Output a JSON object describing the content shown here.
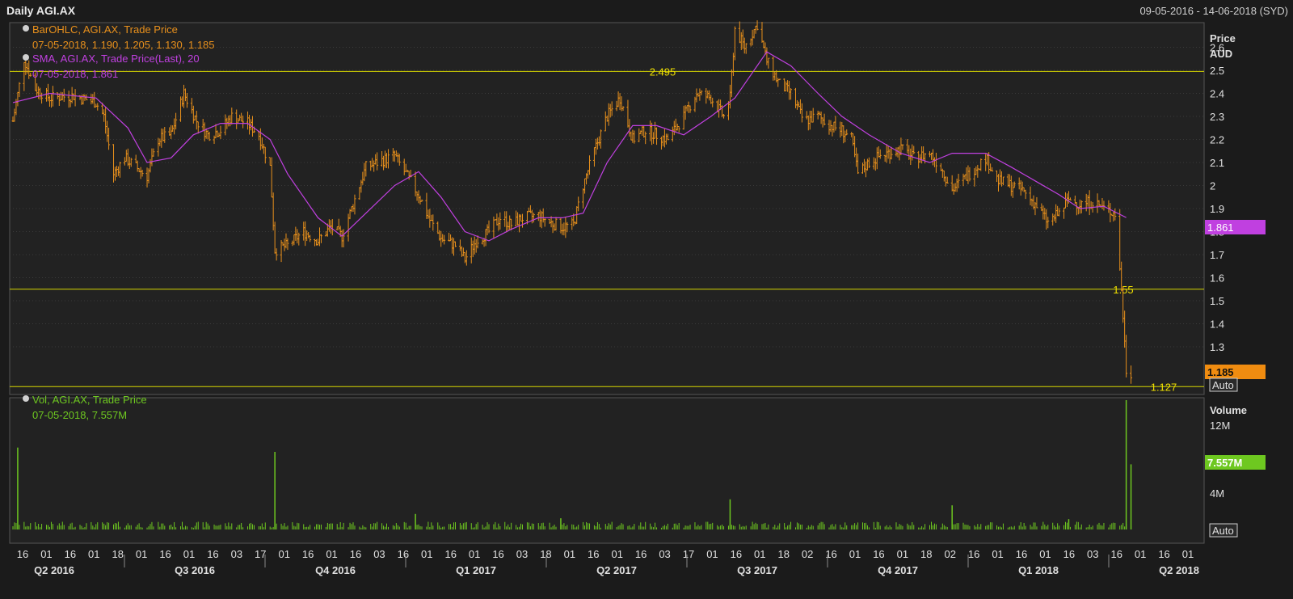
{
  "window": {
    "title": "Daily AGI.AX",
    "date_range": "09-05-2016 - 14-06-2018 (SYD)"
  },
  "colors": {
    "background": "#1b1b1b",
    "plot_background": "#222222",
    "grid": "#3a3a3a",
    "bars": "#e8901c",
    "sma": "#c040e0",
    "volume": "#6ec820",
    "level_line": "#d8d800",
    "axis_text": "#e0e0e0"
  },
  "legend": {
    "ohlc_title": "BarOHLC, AGI.AX, Trade Price",
    "ohlc_values": "07-05-2018, 1.190, 1.205, 1.130, 1.185",
    "sma_title": "SMA, AGI.AX, Trade Price(Last),  20",
    "sma_values": "07-05-2018, 1.861",
    "vol_title": "Vol, AGI.AX, Trade Price",
    "vol_values": "07-05-2018, 7.557M"
  },
  "price_axis": {
    "header1": "Price",
    "header2": "AUD",
    "ticks": [
      "2.6",
      "2.5",
      "2.4",
      "2.3",
      "2.2",
      "2.1",
      "2",
      "1.9",
      "1.8",
      "1.7",
      "1.6",
      "1.5",
      "1.4",
      "1.3"
    ],
    "sma_badge": "1.861",
    "last_badge": "1.185",
    "auto_label": "Auto"
  },
  "volume_axis": {
    "header": "Volume",
    "ticks": [
      "12M",
      "4M"
    ],
    "badge": "7.557M",
    "auto_label": "Auto"
  },
  "levels": [
    {
      "value": 2.495,
      "label": "2.495"
    },
    {
      "value": 1.55,
      "label": "1.55"
    },
    {
      "value": 1.127,
      "label": "1.127"
    }
  ],
  "x_axis": {
    "day_ticks": [
      "16",
      "01",
      "16",
      "01",
      "18",
      "01",
      "16",
      "01",
      "16",
      "03",
      "17",
      "01",
      "16",
      "01",
      "16",
      "03",
      "16",
      "01",
      "16",
      "01",
      "16",
      "03",
      "18",
      "01",
      "16",
      "01",
      "16",
      "03",
      "17",
      "01",
      "16",
      "01",
      "18",
      "02",
      "16",
      "01",
      "16",
      "01",
      "18",
      "02",
      "16",
      "01",
      "16",
      "01",
      "16",
      "03",
      "16",
      "01",
      "16",
      "01"
    ],
    "quarters": [
      "Q2 2016",
      "Q3 2016",
      "Q4 2016",
      "Q1 2017",
      "Q2 2017",
      "Q3 2017",
      "Q4 2017",
      "Q1 2018",
      "Q2 2018"
    ]
  },
  "chart_data": {
    "type": "ohlc",
    "title": "Daily AGI.AX",
    "ylabel": "Price AUD",
    "ylim": [
      1.1,
      2.7
    ],
    "volume_ylim": [
      0,
      15
    ],
    "price_path": [
      [
        "2016-05-09",
        2.28
      ],
      [
        "2016-05-16",
        2.55
      ],
      [
        "2016-05-23",
        2.42
      ],
      [
        "2016-06-01",
        2.38
      ],
      [
        "2016-06-16",
        2.39
      ],
      [
        "2016-06-30",
        2.36
      ],
      [
        "2016-07-05",
        2.3
      ],
      [
        "2016-07-11",
        2.05
      ],
      [
        "2016-07-18",
        2.12
      ],
      [
        "2016-07-25",
        2.08
      ],
      [
        "2016-08-01",
        2.04
      ],
      [
        "2016-08-08",
        2.2
      ],
      [
        "2016-08-16",
        2.22
      ],
      [
        "2016-08-24",
        2.4
      ],
      [
        "2016-09-01",
        2.28
      ],
      [
        "2016-09-08",
        2.22
      ],
      [
        "2016-09-16",
        2.24
      ],
      [
        "2016-09-23",
        2.3
      ],
      [
        "2016-10-03",
        2.27
      ],
      [
        "2016-10-10",
        2.22
      ],
      [
        "2016-10-17",
        2.08
      ],
      [
        "2016-10-20",
        1.72
      ],
      [
        "2016-10-28",
        1.74
      ],
      [
        "2016-11-07",
        1.8
      ],
      [
        "2016-11-16",
        1.76
      ],
      [
        "2016-11-24",
        1.82
      ],
      [
        "2016-12-01",
        1.78
      ],
      [
        "2016-12-08",
        1.92
      ],
      [
        "2016-12-16",
        2.08
      ],
      [
        "2017-01-03",
        2.13
      ],
      [
        "2017-01-10",
        2.05
      ],
      [
        "2017-01-18",
        1.96
      ],
      [
        "2017-01-25",
        1.85
      ],
      [
        "2017-02-01",
        1.77
      ],
      [
        "2017-02-10",
        1.74
      ],
      [
        "2017-02-16",
        1.68
      ],
      [
        "2017-02-23",
        1.76
      ],
      [
        "2017-03-03",
        1.8
      ],
      [
        "2017-03-10",
        1.86
      ],
      [
        "2017-03-17",
        1.83
      ],
      [
        "2017-03-24",
        1.86
      ],
      [
        "2017-04-03",
        1.87
      ],
      [
        "2017-04-10",
        1.84
      ],
      [
        "2017-04-18",
        1.82
      ],
      [
        "2017-04-25",
        1.83
      ],
      [
        "2017-05-01",
        2.0
      ],
      [
        "2017-05-08",
        2.15
      ],
      [
        "2017-05-16",
        2.3
      ],
      [
        "2017-05-24",
        2.38
      ],
      [
        "2017-06-01",
        2.2
      ],
      [
        "2017-06-09",
        2.24
      ],
      [
        "2017-06-16",
        2.22
      ],
      [
        "2017-06-23",
        2.2
      ],
      [
        "2017-07-03",
        2.3
      ],
      [
        "2017-07-11",
        2.4
      ],
      [
        "2017-07-20",
        2.38
      ],
      [
        "2017-07-28",
        2.3
      ],
      [
        "2017-08-01",
        2.38
      ],
      [
        "2017-08-04",
        2.68
      ],
      [
        "2017-08-10",
        2.6
      ],
      [
        "2017-08-18",
        2.7
      ],
      [
        "2017-08-24",
        2.54
      ],
      [
        "2017-09-01",
        2.44
      ],
      [
        "2017-09-08",
        2.4
      ],
      [
        "2017-09-16",
        2.28
      ],
      [
        "2017-09-25",
        2.3
      ],
      [
        "2017-10-03",
        2.26
      ],
      [
        "2017-10-10",
        2.24
      ],
      [
        "2017-10-16",
        2.2
      ],
      [
        "2017-10-20",
        2.05
      ],
      [
        "2017-10-27",
        2.1
      ],
      [
        "2017-11-03",
        2.13
      ],
      [
        "2017-11-16",
        2.16
      ],
      [
        "2017-11-24",
        2.12
      ],
      [
        "2017-12-04",
        2.14
      ],
      [
        "2017-12-11",
        2.08
      ],
      [
        "2017-12-18",
        1.98
      ],
      [
        "2017-12-27",
        2.04
      ],
      [
        "2018-01-08",
        2.12
      ],
      [
        "2018-01-16",
        2.02
      ],
      [
        "2018-01-24",
        2.0
      ],
      [
        "2018-01-31",
        1.98
      ],
      [
        "2018-02-08",
        1.92
      ],
      [
        "2018-02-16",
        1.84
      ],
      [
        "2018-02-23",
        1.88
      ],
      [
        "2018-03-01",
        1.94
      ],
      [
        "2018-03-08",
        1.92
      ],
      [
        "2018-03-16",
        1.93
      ],
      [
        "2018-03-23",
        1.9
      ],
      [
        "2018-03-30",
        1.88
      ],
      [
        "2018-04-03",
        1.55
      ],
      [
        "2018-04-06",
        1.2
      ],
      [
        "2018-04-09",
        1.185
      ]
    ],
    "sma_path": [
      [
        "2016-05-09",
        2.36
      ],
      [
        "2016-06-01",
        2.4
      ],
      [
        "2016-06-30",
        2.38
      ],
      [
        "2016-07-20",
        2.25
      ],
      [
        "2016-08-01",
        2.1
      ],
      [
        "2016-08-16",
        2.12
      ],
      [
        "2016-08-30",
        2.22
      ],
      [
        "2016-09-16",
        2.27
      ],
      [
        "2016-10-03",
        2.27
      ],
      [
        "2016-10-17",
        2.2
      ],
      [
        "2016-10-28",
        2.05
      ],
      [
        "2016-11-16",
        1.86
      ],
      [
        "2016-12-01",
        1.78
      ],
      [
        "2016-12-16",
        1.88
      ],
      [
        "2017-01-03",
        2.0
      ],
      [
        "2017-01-18",
        2.06
      ],
      [
        "2017-02-01",
        1.95
      ],
      [
        "2017-02-16",
        1.8
      ],
      [
        "2017-03-03",
        1.76
      ],
      [
        "2017-03-17",
        1.81
      ],
      [
        "2017-04-03",
        1.86
      ],
      [
        "2017-04-18",
        1.86
      ],
      [
        "2017-05-01",
        1.88
      ],
      [
        "2017-05-16",
        2.1
      ],
      [
        "2017-06-01",
        2.26
      ],
      [
        "2017-06-16",
        2.26
      ],
      [
        "2017-07-03",
        2.22
      ],
      [
        "2017-07-20",
        2.3
      ],
      [
        "2017-08-04",
        2.38
      ],
      [
        "2017-08-24",
        2.58
      ],
      [
        "2017-09-08",
        2.52
      ],
      [
        "2017-09-25",
        2.4
      ],
      [
        "2017-10-10",
        2.3
      ],
      [
        "2017-10-27",
        2.22
      ],
      [
        "2017-11-16",
        2.14
      ],
      [
        "2017-12-04",
        2.1
      ],
      [
        "2017-12-18",
        2.14
      ],
      [
        "2018-01-08",
        2.14
      ],
      [
        "2018-01-24",
        2.08
      ],
      [
        "2018-02-08",
        2.02
      ],
      [
        "2018-02-23",
        1.96
      ],
      [
        "2018-03-08",
        1.9
      ],
      [
        "2018-03-23",
        1.91
      ],
      [
        "2018-04-06",
        1.861
      ]
    ],
    "volume_spikes": [
      [
        "2016-05-12",
        9.5
      ],
      [
        "2016-10-20",
        9.0
      ],
      [
        "2017-01-16",
        1.8
      ],
      [
        "2017-04-17",
        1.3
      ],
      [
        "2017-08-01",
        3.5
      ],
      [
        "2017-12-18",
        2.8
      ],
      [
        "2018-03-01",
        1.2
      ],
      [
        "2018-04-06",
        15.0
      ],
      [
        "2018-04-09",
        7.557
      ]
    ]
  }
}
